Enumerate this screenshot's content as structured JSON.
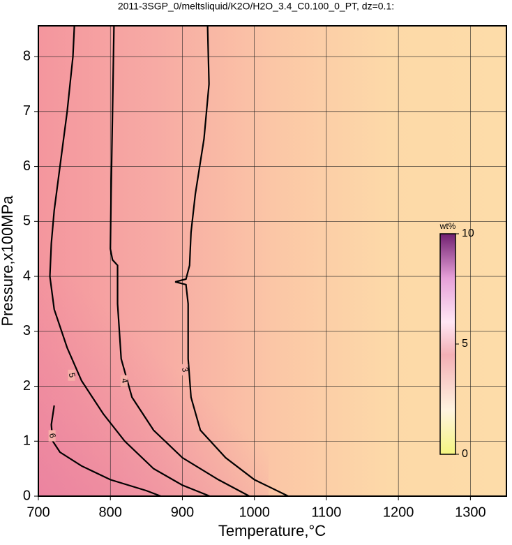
{
  "chart_data": {
    "type": "contour",
    "title": "2011-3SGP_0/meltsliquid/K2O/H2O_3.4_C0.100_0_PT, dz=0.1:",
    "x_label": "Temperature,°C",
    "y_label": "Pressure,x100MPa",
    "xlim": [
      700,
      1350
    ],
    "ylim": [
      0,
      8.56
    ],
    "xticks": [
      700,
      800,
      900,
      1000,
      1100,
      1200,
      1300
    ],
    "yticks": [
      0,
      1,
      2,
      3,
      4,
      5,
      6,
      7,
      8
    ],
    "grid": true,
    "contours": [
      {
        "level": 3,
        "x": [
          1047,
          1000,
          960,
          925,
          912,
          908,
          908,
          905,
          890,
          905,
          910,
          912,
          918,
          930,
          937,
          935
        ],
        "y": [
          0,
          0.3,
          0.7,
          1.2,
          1.8,
          2.5,
          3.5,
          3.85,
          3.9,
          3.95,
          4.2,
          4.8,
          5.5,
          6.5,
          7.5,
          8.56
        ]
      },
      {
        "level": 4,
        "x": [
          993,
          950,
          900,
          860,
          830,
          815,
          810,
          810,
          803,
          800,
          801,
          803,
          805
        ],
        "y": [
          0,
          0.3,
          0.7,
          1.2,
          1.8,
          2.5,
          3.5,
          4.2,
          4.3,
          4.5,
          5.5,
          7,
          8.56
        ]
      },
      {
        "level": 5,
        "x": [
          938,
          900,
          860,
          820,
          790,
          760,
          740,
          722,
          716,
          718,
          722,
          730,
          740,
          748,
          750
        ],
        "y": [
          0,
          0.2,
          0.5,
          1.0,
          1.5,
          2.1,
          2.7,
          3.4,
          4.0,
          4.6,
          5.2,
          6.0,
          7.0,
          8.0,
          8.56
        ]
      },
      {
        "level": 6,
        "x": [
          870,
          850,
          800,
          760,
          730,
          720,
          718,
          722
        ],
        "y": [
          0,
          0.1,
          0.3,
          0.55,
          0.8,
          1.0,
          1.3,
          1.65
        ]
      }
    ],
    "colorbar": {
      "label": "wt%",
      "lim": [
        0,
        10
      ],
      "ticks": [
        0,
        5,
        10
      ]
    }
  }
}
